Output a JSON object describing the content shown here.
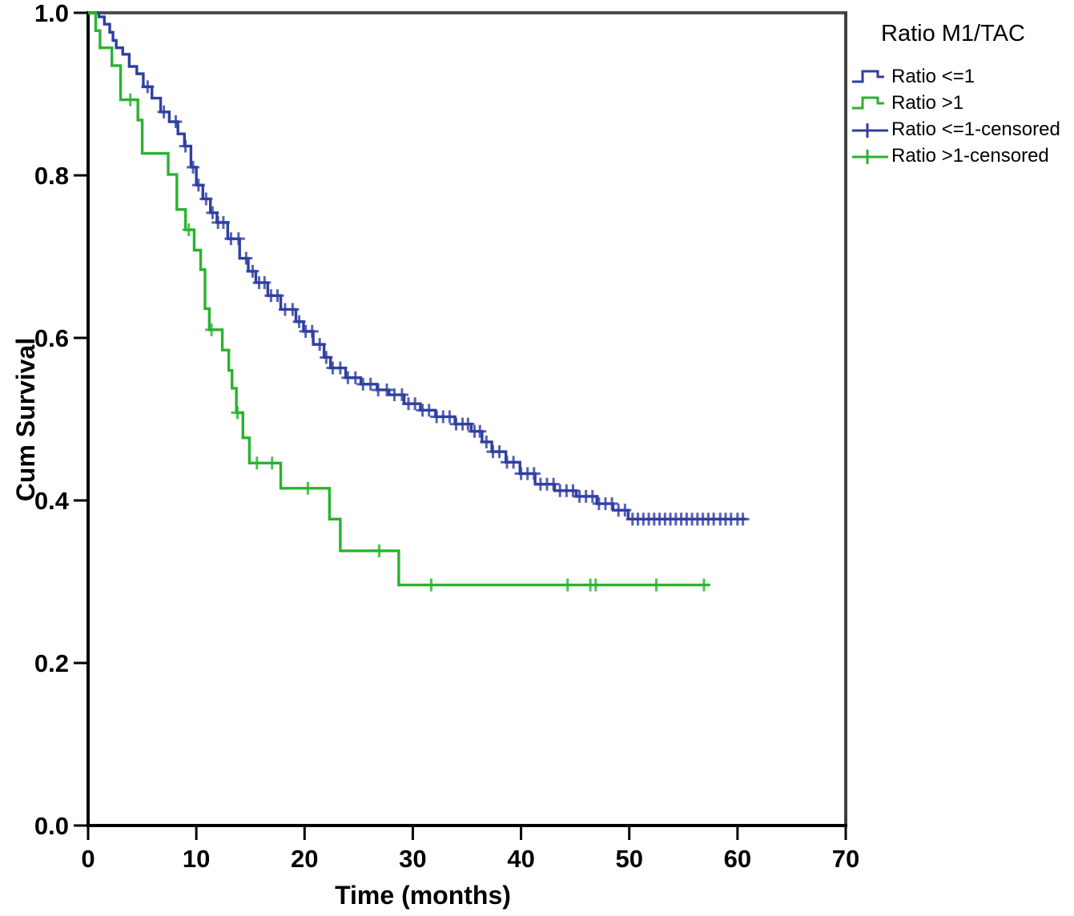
{
  "figure": {
    "x_axis_label": "Time (months)",
    "y_axis_label": "Cum Survival",
    "legend_title": "Ratio M1/TAC",
    "legend_items": [
      {
        "label": "Ratio <=1",
        "marker": "step-line",
        "color": "#2f3fa2"
      },
      {
        "label": "Ratio >1",
        "marker": "step-line",
        "color": "#29b32e"
      },
      {
        "label": "Ratio <=1-censored",
        "marker": "censor-plus",
        "color": "#2f3fa2"
      },
      {
        "label": "Ratio >1-censored",
        "marker": "censor-plus",
        "color": "#29b32e"
      }
    ]
  },
  "chart_data": {
    "type": "line",
    "subtype": "kaplan_meier_step_function",
    "title": "",
    "xlabel": "Time (months)",
    "ylabel": "Cum Survival",
    "xlim": [
      0,
      70
    ],
    "ylim": [
      0.0,
      1.0
    ],
    "x_ticks": [
      0,
      10,
      20,
      30,
      40,
      50,
      60,
      70
    ],
    "y_tick_labels": [
      "0.0",
      "0.2",
      "0.4",
      "0.6",
      "0.8",
      "1.0"
    ],
    "grid": false,
    "legend_position": "top-right-outside",
    "frame": {
      "top_color": "#4d4d4d",
      "right_color": "#3f3f3f",
      "axis_color": "#000000"
    },
    "series": [
      {
        "name": "Ratio <=1",
        "color": "#2f3fa2",
        "end_time": 60.8,
        "steps": [
          [
            0,
            1.0
          ],
          [
            1.0,
            0.995
          ],
          [
            1.5,
            0.986
          ],
          [
            2.0,
            0.976
          ],
          [
            2.3,
            0.966
          ],
          [
            2.6,
            0.957
          ],
          [
            3.2,
            0.949
          ],
          [
            3.8,
            0.934
          ],
          [
            4.5,
            0.925
          ],
          [
            5.1,
            0.909
          ],
          [
            5.9,
            0.895
          ],
          [
            6.7,
            0.878
          ],
          [
            7.5,
            0.866
          ],
          [
            8.3,
            0.851
          ],
          [
            8.9,
            0.836
          ],
          [
            9.5,
            0.81
          ],
          [
            10.0,
            0.788
          ],
          [
            10.6,
            0.771
          ],
          [
            11.3,
            0.754
          ],
          [
            11.9,
            0.742
          ],
          [
            12.9,
            0.722
          ],
          [
            14.0,
            0.698
          ],
          [
            14.8,
            0.682
          ],
          [
            15.5,
            0.668
          ],
          [
            16.6,
            0.652
          ],
          [
            17.8,
            0.635
          ],
          [
            19.2,
            0.62
          ],
          [
            19.9,
            0.608
          ],
          [
            20.8,
            0.592
          ],
          [
            21.8,
            0.576
          ],
          [
            22.4,
            0.563
          ],
          [
            23.8,
            0.551
          ],
          [
            25.2,
            0.543
          ],
          [
            26.7,
            0.536
          ],
          [
            27.8,
            0.53
          ],
          [
            29.2,
            0.519
          ],
          [
            30.7,
            0.511
          ],
          [
            32.1,
            0.503
          ],
          [
            33.9,
            0.494
          ],
          [
            35.4,
            0.485
          ],
          [
            36.4,
            0.472
          ],
          [
            37.3,
            0.46
          ],
          [
            38.6,
            0.447
          ],
          [
            39.9,
            0.433
          ],
          [
            41.3,
            0.42
          ],
          [
            43.1,
            0.412
          ],
          [
            45.1,
            0.405
          ],
          [
            47.0,
            0.396
          ],
          [
            48.5,
            0.388
          ],
          [
            49.9,
            0.377
          ]
        ],
        "censor_times": [
          5.5,
          7.0,
          8.1,
          9.0,
          9.7,
          10.2,
          10.9,
          11.5,
          12.0,
          12.5,
          13.2,
          13.9,
          14.6,
          15.2,
          15.8,
          16.3,
          16.9,
          17.5,
          18.2,
          18.9,
          19.5,
          20.1,
          20.7,
          21.4,
          22.0,
          22.6,
          23.3,
          24.0,
          24.7,
          25.4,
          26.1,
          26.8,
          27.6,
          28.3,
          29.0,
          29.6,
          30.2,
          30.9,
          31.5,
          32.2,
          32.8,
          33.4,
          34.0,
          34.6,
          35.1,
          35.7,
          36.2,
          36.8,
          37.4,
          38.0,
          38.7,
          39.3,
          40.0,
          40.6,
          41.2,
          41.8,
          42.4,
          43.0,
          43.6,
          44.2,
          44.8,
          45.4,
          46.0,
          46.6,
          47.2,
          47.8,
          48.4,
          49.0,
          49.6,
          50.3,
          50.8,
          51.3,
          51.8,
          52.3,
          52.8,
          53.3,
          53.8,
          54.3,
          54.8,
          55.3,
          55.8,
          56.3,
          56.8,
          57.3,
          57.8,
          58.4,
          58.9,
          59.4,
          60.0,
          60.5
        ]
      },
      {
        "name": "Ratio >1",
        "color": "#29b32e",
        "end_time": 57.4,
        "steps": [
          [
            0,
            1.0
          ],
          [
            0.7,
            0.978
          ],
          [
            1.1,
            0.957
          ],
          [
            2.2,
            0.935
          ],
          [
            3.0,
            0.893
          ],
          [
            4.6,
            0.868
          ],
          [
            5.0,
            0.827
          ],
          [
            7.4,
            0.801
          ],
          [
            8.2,
            0.758
          ],
          [
            9.0,
            0.733
          ],
          [
            9.8,
            0.708
          ],
          [
            10.4,
            0.684
          ],
          [
            10.8,
            0.636
          ],
          [
            11.2,
            0.61
          ],
          [
            12.4,
            0.585
          ],
          [
            13.0,
            0.56
          ],
          [
            13.3,
            0.538
          ],
          [
            13.7,
            0.508
          ],
          [
            14.3,
            0.477
          ],
          [
            14.9,
            0.446
          ],
          [
            17.8,
            0.415
          ],
          [
            22.3,
            0.377
          ],
          [
            23.3,
            0.338
          ],
          [
            28.7,
            0.296
          ]
        ],
        "censor_times": [
          3.9,
          9.3,
          11.4,
          13.8,
          15.6,
          17.0,
          20.3,
          26.9,
          31.7,
          44.3,
          46.4,
          46.9,
          52.5,
          56.9
        ]
      }
    ]
  }
}
